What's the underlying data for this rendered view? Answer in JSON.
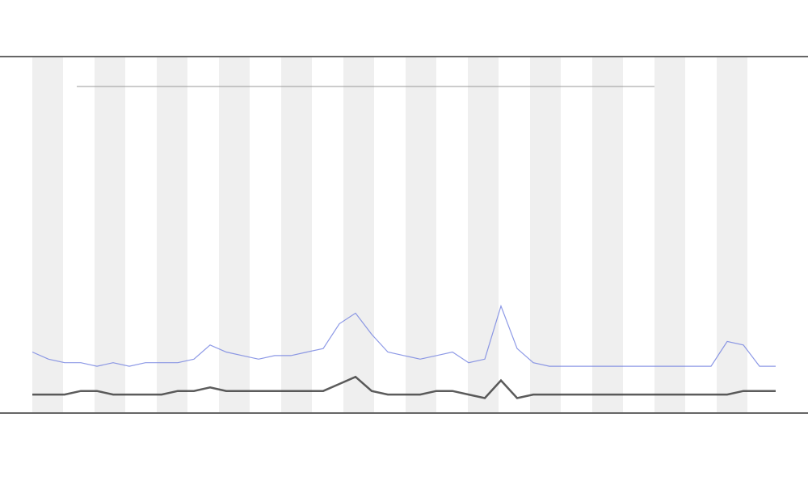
{
  "chart_data": {
    "type": "line",
    "categories": [
      null,
      null,
      null,
      null,
      null,
      null,
      null,
      null,
      null,
      null,
      null,
      null,
      null,
      null,
      null,
      null,
      null,
      null,
      null,
      null,
      null,
      null,
      null,
      null,
      null,
      null,
      null,
      null,
      null,
      null,
      null,
      null,
      null,
      null,
      null,
      null,
      null,
      null,
      null,
      null,
      null,
      null,
      null,
      null,
      null,
      null,
      null
    ],
    "ylim": [
      0,
      100
    ],
    "series": [
      {
        "color": "#7080e0",
        "values": [
          17,
          15,
          14,
          14,
          13,
          14,
          13,
          14,
          14,
          14,
          15,
          19,
          17,
          16,
          15,
          16,
          16,
          17,
          18,
          25,
          28,
          22,
          17,
          16,
          15,
          16,
          17,
          14,
          15,
          30,
          18,
          14,
          13,
          13,
          13,
          13,
          13,
          13,
          13,
          13,
          13,
          13,
          13,
          20,
          19,
          13,
          13
        ]
      },
      {
        "color": "#333333",
        "values": [
          5,
          5,
          5,
          6,
          6,
          5,
          5,
          5,
          5,
          6,
          6,
          7,
          6,
          6,
          6,
          6,
          6,
          6,
          6,
          8,
          10,
          6,
          5,
          5,
          5,
          6,
          6,
          5,
          4,
          9,
          4,
          5,
          5,
          5,
          5,
          5,
          5,
          5,
          5,
          5,
          5,
          5,
          5,
          5,
          6,
          6,
          6
        ]
      }
    ]
  }
}
